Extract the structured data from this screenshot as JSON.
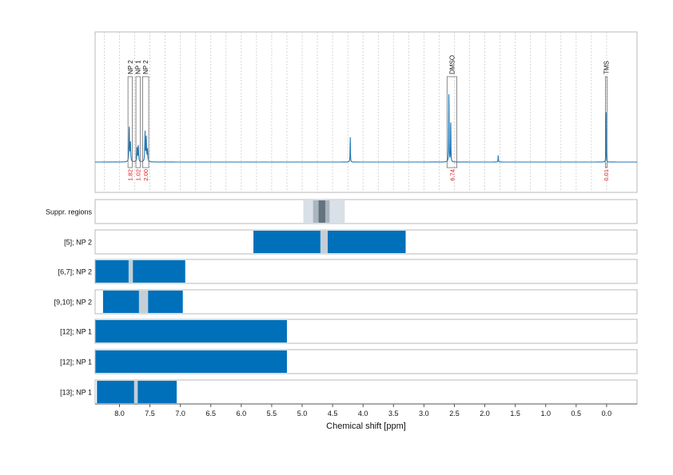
{
  "chart_data": {
    "type": "nmr-spectrum",
    "xlabel": "Chemical shift [ppm]",
    "x_range": [
      8.4,
      -0.5
    ],
    "x_ticks": [
      "8.0",
      "7.5",
      "7.0",
      "6.5",
      "6.0",
      "5.5",
      "5.0",
      "4.5",
      "4.0",
      "3.5",
      "3.0",
      "2.5",
      "2.0",
      "1.5",
      "1.0",
      "0.5",
      "0.0"
    ],
    "spectrum": {
      "line_color": "#1f77b4",
      "peaks": [
        {
          "ppm": 7.84,
          "height": 0.3,
          "width": 0.01
        },
        {
          "ppm": 7.82,
          "height": 0.16,
          "width": 0.01
        },
        {
          "ppm": 7.71,
          "height": 0.12,
          "width": 0.01
        },
        {
          "ppm": 7.69,
          "height": 0.14,
          "width": 0.01
        },
        {
          "ppm": 7.58,
          "height": 0.25,
          "width": 0.01
        },
        {
          "ppm": 7.56,
          "height": 0.2,
          "width": 0.01
        },
        {
          "ppm": 7.54,
          "height": 0.1,
          "width": 0.01
        },
        {
          "ppm": 4.21,
          "height": 0.22,
          "width": 0.006
        },
        {
          "ppm": 2.59,
          "height": 0.68,
          "width": 0.006
        },
        {
          "ppm": 2.56,
          "height": 0.4,
          "width": 0.006
        },
        {
          "ppm": 1.78,
          "height": 0.06,
          "width": 0.006
        },
        {
          "ppm": 0.01,
          "height": 0.6,
          "width": 0.004
        }
      ],
      "annotations": [
        {
          "label": "NP 2",
          "ppm_from": 7.86,
          "ppm_to": 7.79
        },
        {
          "label": "NP 1",
          "ppm_from": 7.73,
          "ppm_to": 7.66
        },
        {
          "label": "NP 2",
          "ppm_from": 7.62,
          "ppm_to": 7.52
        },
        {
          "label": "DMSO",
          "ppm_from": 2.62,
          "ppm_to": 2.46
        },
        {
          "label": "TMS",
          "ppm_from": 0.02,
          "ppm_to": -0.01
        }
      ],
      "integrals": [
        {
          "label": "1.82",
          "ppm": 7.83
        },
        {
          "label": "1.02",
          "ppm": 7.7
        },
        {
          "label": "2.00",
          "ppm": 7.57
        },
        {
          "label": "6.74",
          "ppm": 2.54
        },
        {
          "label": "0.01",
          "ppm": 0.01
        }
      ]
    },
    "rows": [
      {
        "label": "Suppr. regions",
        "kind": "suppression",
        "regions": [
          {
            "from": 4.98,
            "to": 4.3,
            "shade": "light"
          },
          {
            "from": 4.82,
            "to": 4.55,
            "shade": "mid"
          },
          {
            "from": 4.73,
            "to": 4.62,
            "shade": "dark"
          }
        ]
      },
      {
        "label": "[5]; NP 2",
        "kind": "bars",
        "bars": [
          {
            "from": 5.8,
            "to": 4.7
          },
          {
            "from": 4.58,
            "to": 3.3
          }
        ],
        "gaps": [
          {
            "from": 4.7,
            "to": 4.58
          }
        ]
      },
      {
        "label": "[6,7]; NP 2",
        "kind": "bars",
        "bars": [
          {
            "from": 8.4,
            "to": 7.85
          },
          {
            "from": 7.78,
            "to": 6.92
          }
        ],
        "gaps": [
          {
            "from": 7.85,
            "to": 7.78
          }
        ]
      },
      {
        "label": "[9,10]; NP 2",
        "kind": "bars",
        "bars": [
          {
            "from": 8.27,
            "to": 7.68
          },
          {
            "from": 7.53,
            "to": 6.96
          }
        ],
        "gaps": [
          {
            "from": 7.68,
            "to": 7.53
          }
        ]
      },
      {
        "label": "[12]; NP 1",
        "kind": "bars",
        "bars": [
          {
            "from": 8.4,
            "to": 5.25
          }
        ],
        "gaps": []
      },
      {
        "label": "[12]; NP 1",
        "kind": "bars",
        "bars": [
          {
            "from": 8.4,
            "to": 5.25
          }
        ],
        "gaps": []
      },
      {
        "label": "[13]; NP 1",
        "kind": "bars",
        "bars": [
          {
            "from": 8.37,
            "to": 7.76
          },
          {
            "from": 7.7,
            "to": 7.06
          }
        ],
        "gaps": [
          {
            "from": 7.76,
            "to": 7.7
          }
        ]
      }
    ],
    "colors": {
      "bar": "#0070bb",
      "gap": "#c5ced6",
      "suppr_light": "#d9e0e7",
      "suppr_mid": "#a9b6c1",
      "suppr_dark": "#65737e",
      "integral_text": "#e0161a",
      "frame": "#b9b9b9",
      "grid": "#cccccc"
    }
  }
}
